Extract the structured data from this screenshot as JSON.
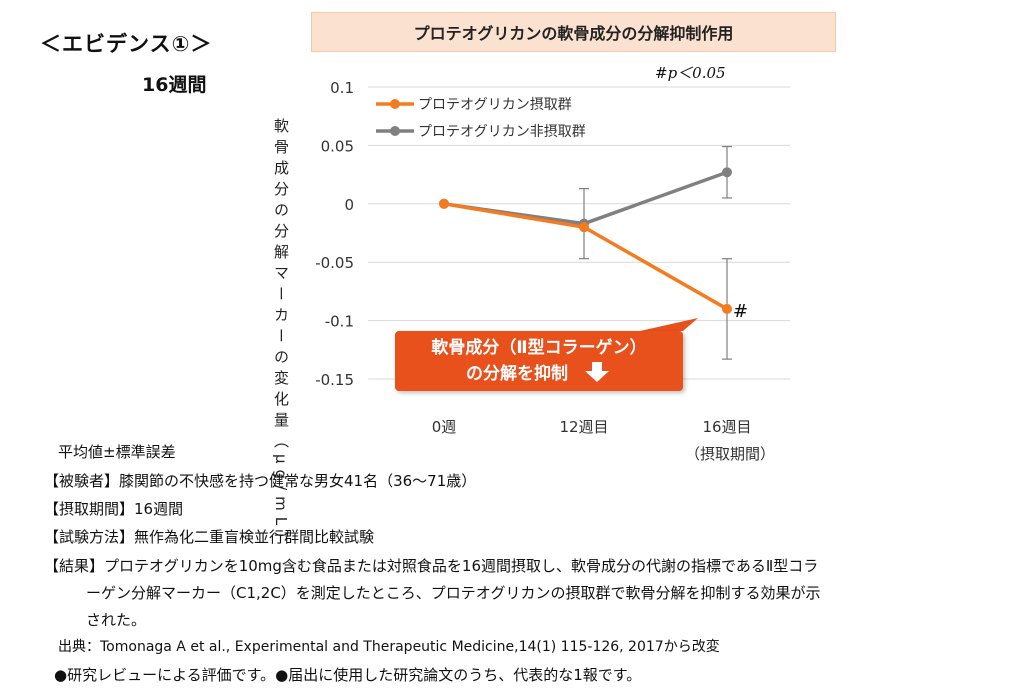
{
  "heading": "＜エビデンス①＞",
  "duration": "16週間",
  "colors": {
    "intake": "#f47b20",
    "non_intake": "#808080",
    "callout": "#e8501c",
    "title_bg": "#fbe1cf"
  },
  "chart_data": {
    "type": "line",
    "title": "プロテオグリカンの軟骨成分の分解抑制作用",
    "ylabel": "軟骨成分の分解マーカーの変化量（μg/mL）",
    "ylim": [
      -0.15,
      0.1
    ],
    "yticks": [
      0.1,
      0.05,
      0,
      -0.05,
      -0.1,
      -0.15
    ],
    "ytick_labels": [
      "0.1",
      "0.05",
      "0",
      "-0.05",
      "-0.1",
      "-0.15"
    ],
    "categories": [
      "0週",
      "12週目",
      "16週目"
    ],
    "category_sublabels": [
      "",
      "",
      "（摂取期間）"
    ],
    "legend_position": "top-left",
    "series": [
      {
        "name": "プロテオグリカン摂取群",
        "color": "#f47b20",
        "values": [
          0,
          -0.02,
          -0.09
        ],
        "errors": [
          0,
          0,
          0.043
        ]
      },
      {
        "name": "プロテオグリカン非摂取群",
        "color": "#808080",
        "values": [
          0,
          -0.017,
          0.027
        ],
        "errors": [
          0,
          0.03,
          0.022
        ]
      }
    ],
    "significance_note": "#p＜0.05",
    "significance_mark": "#",
    "significance_index": 2,
    "callout": {
      "line1": "軟骨成分（Ⅱ型コラーゲン）",
      "line2": "の分解を抑制"
    }
  },
  "notes": {
    "stats": "平均値±標準誤差",
    "subjects": "【被験者】膝関節の不快感を持つ健常な男女41名（36～71歳）",
    "period": "【摂取期間】16週間",
    "method": "【試験方法】無作為化二重盲検並行群間比較試験",
    "result_line1": "【結果】プロテオグリカンを10mg含む食品または対照食品を16週間摂取し、軟骨成分の代謝の指標であるⅡ型コラ",
    "result_line2": "ーゲン分解マーカー（C1,2C）を測定したところ、プロテオグリカンの摂取群で軟骨分解を抑制する効果が示",
    "result_line3": "された。",
    "source": "出典：Tomonaga A et al., Experimental and Therapeutic Medicine,14(1) 115-126, 2017から改変",
    "review": "●研究レビューによる評価です。●届出に使用した研究論文のうち、代表的な1報です。"
  }
}
